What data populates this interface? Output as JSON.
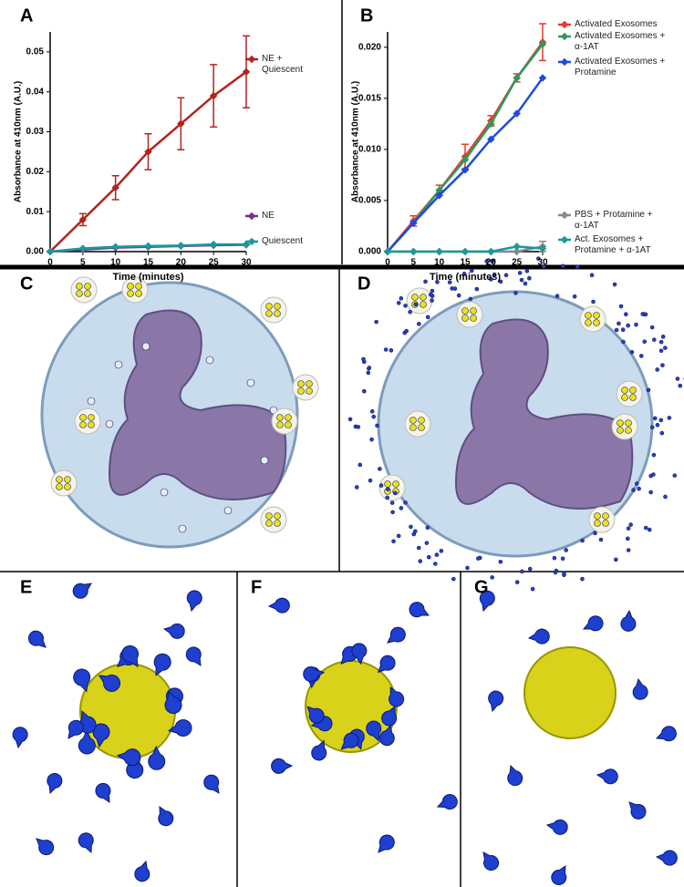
{
  "chart_data": [
    {
      "type": "line",
      "panel": "A",
      "xlabel": "Time (minutes)",
      "ylabel": "Absorbance at 410nm (A.U.)",
      "xlim": [
        0,
        30
      ],
      "xticks": [
        0,
        5,
        10,
        15,
        20,
        25,
        30
      ],
      "ylim": [
        0,
        0.055
      ],
      "yticks": [
        {
          "value": 0,
          "label": "0.00"
        },
        {
          "value": 0.01,
          "label": "0.01"
        },
        {
          "value": 0.02,
          "label": "0.02"
        },
        {
          "value": 0.03,
          "label": "0.03"
        },
        {
          "value": 0.04,
          "label": "0.04"
        },
        {
          "value": 0.05,
          "label": "0.05"
        }
      ],
      "x": [
        0,
        5,
        10,
        15,
        20,
        25,
        30
      ],
      "series": [
        {
          "name": "NE + Quiescent",
          "color": "#b3241e",
          "values": [
            0,
            0.008,
            0.016,
            0.025,
            0.032,
            0.039,
            0.045
          ],
          "errors": [
            0,
            0.0015,
            0.003,
            0.0045,
            0.0065,
            0.0078,
            0.009
          ]
        },
        {
          "name": "NE",
          "color": "#7b2d8e",
          "values": [
            0,
            0.0005,
            0.001,
            0.0012,
            0.0014,
            0.0016,
            0.0017
          ]
        },
        {
          "name": "Quiescent",
          "color": "#1a9a9a",
          "values": [
            0,
            0.0008,
            0.0012,
            0.0014,
            0.0015,
            0.0018,
            0.0018
          ]
        }
      ]
    },
    {
      "type": "line",
      "panel": "B",
      "xlabel": "Time (minutes)",
      "ylabel": "Absorbance at 410nm (A.U.)",
      "xlim": [
        0,
        30
      ],
      "xticks": [
        0,
        5,
        10,
        15,
        20,
        25,
        30
      ],
      "ylim": [
        0,
        0.0215
      ],
      "yticks": [
        {
          "value": 0,
          "label": "0.000"
        },
        {
          "value": 0.005,
          "label": "0.005"
        },
        {
          "value": 0.01,
          "label": "0.010"
        },
        {
          "value": 0.015,
          "label": "0.015"
        },
        {
          "value": 0.02,
          "label": "0.020"
        }
      ],
      "x": [
        0,
        5,
        10,
        15,
        20,
        25,
        30
      ],
      "series": [
        {
          "name": "Activated Exosomes",
          "color": "#e8392b",
          "values": [
            0,
            0.003,
            0.006,
            0.0093,
            0.0128,
            0.017,
            0.0205
          ],
          "errors": [
            0,
            0.0005,
            0.0005,
            0.0012,
            0.0005,
            0.0004,
            0.0018
          ]
        },
        {
          "name": "Activated Exosomes + α-1AT",
          "color": "#2e9a5a",
          "values": [
            0,
            0.0028,
            0.006,
            0.009,
            0.0125,
            0.017,
            0.0203
          ]
        },
        {
          "name": "Activated Exosomes + Protamine",
          "color": "#1e4be0",
          "values": [
            0,
            0.0028,
            0.0055,
            0.008,
            0.011,
            0.0135,
            0.017
          ]
        },
        {
          "name": "PBS + Protamine + α-1AT",
          "color": "#888888",
          "values": [
            0,
            0,
            0,
            0,
            0,
            0,
            0.0005
          ],
          "errors": [
            0,
            0,
            0,
            0,
            0,
            0,
            0.0005
          ]
        },
        {
          "name": "Act. Exosomes + Protamine + α-1AT",
          "color": "#1a9a9a",
          "values": [
            0,
            0,
            0,
            0,
            0,
            0.0005,
            0.0003
          ]
        }
      ]
    }
  ],
  "panels": [
    "C",
    "D",
    "E",
    "F",
    "G"
  ]
}
